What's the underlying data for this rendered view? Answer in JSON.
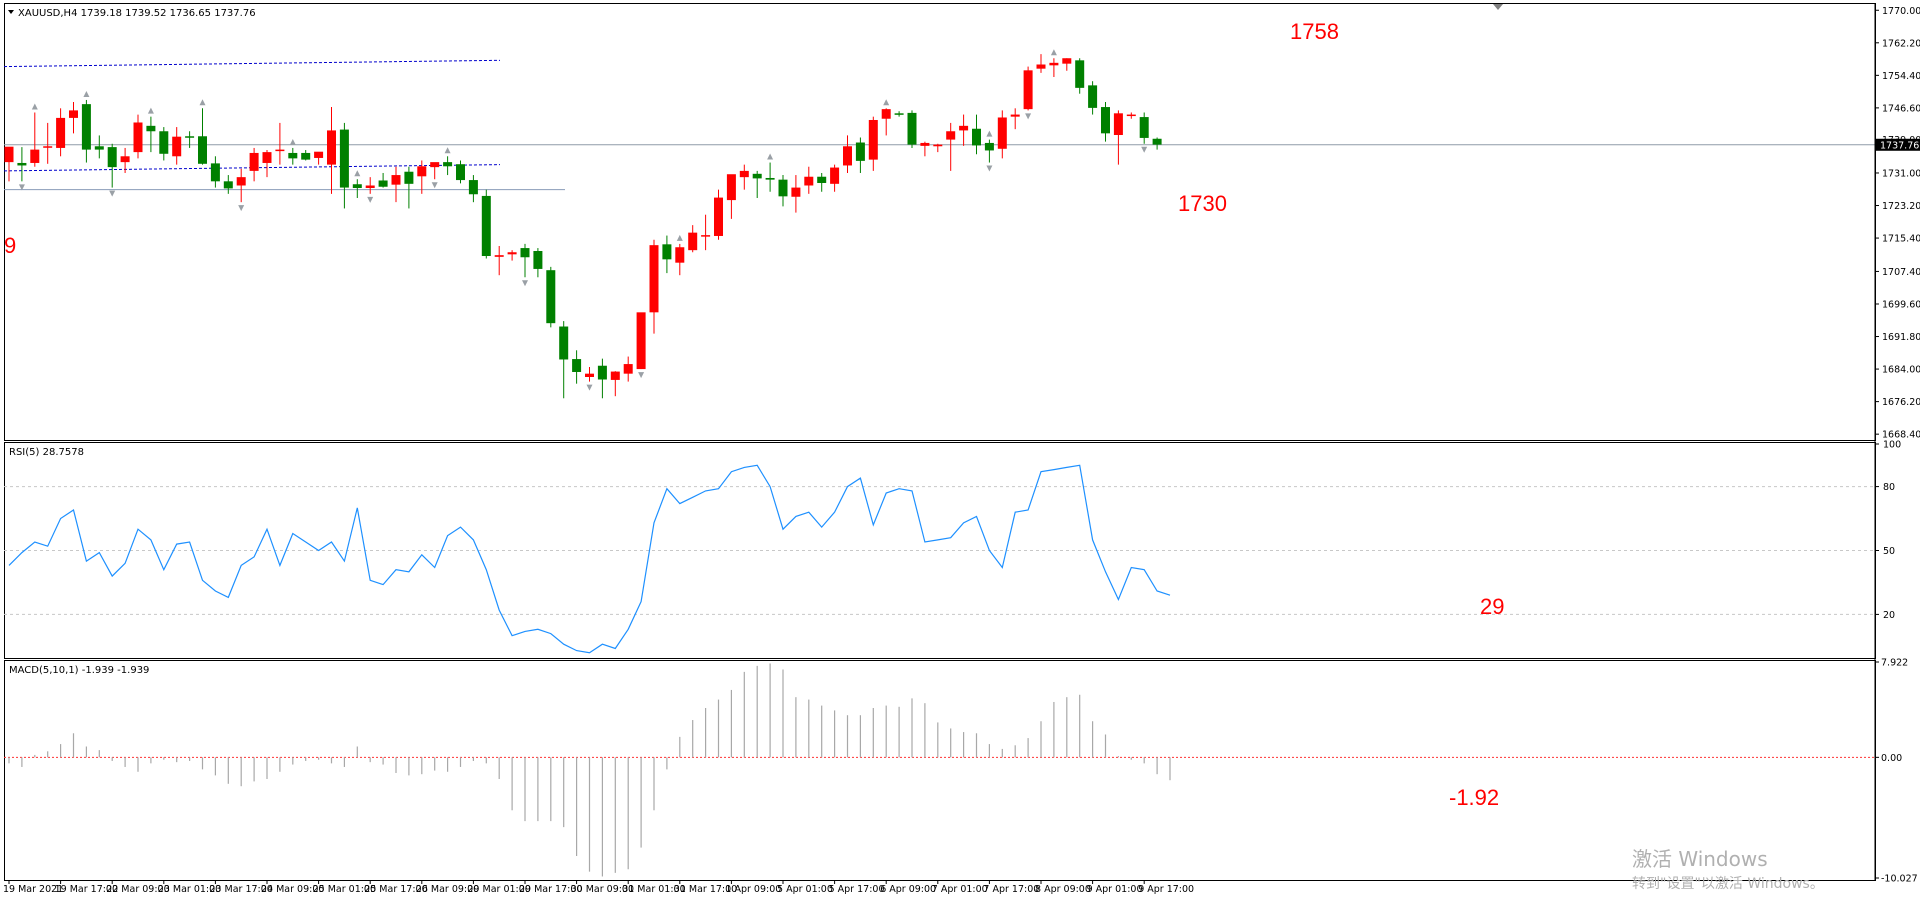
{
  "symbol_line": "XAUUSD,H4  1739.18 1739.52 1736.65 1737.76",
  "price_axis": {
    "ticks": [
      "1770.00",
      "1762.20",
      "1754.40",
      "1746.60",
      "1739.00",
      "1731.00",
      "1723.20",
      "1715.40",
      "1707.40",
      "1699.60",
      "1691.80",
      "1684.00",
      "1676.20",
      "1668.40"
    ],
    "current_label": "1737.76",
    "range": [
      1667.0,
      1771.5
    ]
  },
  "annotations": {
    "high": "1758",
    "low": "1730",
    "left_cut": "9",
    "rsi_value": "29",
    "macd_value": "-1.92"
  },
  "rsi": {
    "label": "RSI(5) 28.7578",
    "ticks": [
      "100",
      "80",
      "50",
      "20"
    ],
    "levels": [
      80,
      50,
      20
    ],
    "values": [
      43,
      49,
      54,
      52,
      65,
      69,
      45,
      49,
      38,
      44,
      60,
      55,
      41,
      53,
      54,
      36,
      31,
      28,
      43,
      47,
      60,
      43,
      58,
      54,
      50,
      54,
      45,
      70,
      36,
      34,
      41,
      40,
      48,
      42,
      57,
      61,
      55,
      41,
      22,
      10,
      12,
      13,
      11,
      6,
      3,
      2,
      6,
      4,
      13,
      26,
      63,
      79,
      72,
      75,
      78,
      79,
      87,
      89,
      90,
      80,
      60,
      66,
      68,
      61,
      68,
      80,
      84,
      62,
      77,
      79,
      78,
      54,
      55,
      56,
      63,
      66,
      50,
      42,
      68,
      69,
      87,
      88,
      89,
      90,
      55,
      40,
      27,
      42,
      41,
      31,
      29
    ],
    "range": [
      0,
      100
    ]
  },
  "macd": {
    "label": "MACD(5,10,1) -1.939 -1.939",
    "ticks": [
      "7.922",
      "0.00",
      "-10.027"
    ],
    "range": [
      -10.027,
      7.922
    ],
    "hist": [
      -0.5,
      -0.8,
      0.2,
      0.5,
      1.1,
      2.0,
      0.9,
      0.6,
      -0.3,
      -0.8,
      -1.2,
      -0.5,
      -0.2,
      -0.4,
      -0.3,
      -1.0,
      -1.5,
      -2.2,
      -2.4,
      -2.0,
      -1.8,
      -1.2,
      -0.6,
      -0.3,
      -0.2,
      -0.5,
      -0.8,
      0.9,
      -0.4,
      -0.6,
      -1.3,
      -1.5,
      -1.4,
      -1.1,
      -1.2,
      -0.8,
      -0.3,
      -0.5,
      -1.8,
      -4.4,
      -5.3,
      -5.3,
      -5.3,
      -5.8,
      -8.2,
      -9.5,
      -9.9,
      -9.6,
      -9.3,
      -7.5,
      -4.4,
      -1.0,
      1.7,
      3.1,
      4.1,
      4.8,
      5.6,
      7.1,
      7.6,
      7.8,
      7.3,
      5.0,
      4.8,
      4.3,
      3.9,
      3.5,
      3.5,
      4.1,
      4.3,
      4.2,
      4.9,
      4.5,
      2.9,
      2.4,
      2.1,
      2.0,
      1.1,
      0.7,
      1.0,
      1.6,
      3.0,
      4.6,
      5.0,
      5.2,
      3.0,
      1.9,
      0.1,
      -0.2,
      -0.5,
      -1.4,
      -1.9
    ]
  },
  "candles": [
    [
      1733.6,
      1737.0,
      1729.0,
      1737.3
    ],
    [
      1733.4,
      1737.2,
      1729.0,
      1732.8
    ],
    [
      1733.4,
      1745.5,
      1732.5,
      1736.6
    ],
    [
      1737.2,
      1743.0,
      1733.2,
      1737.4
    ],
    [
      1737.0,
      1746.5,
      1735.0,
      1744.2
    ],
    [
      1744.2,
      1748.0,
      1740.5,
      1746.0
    ],
    [
      1747.5,
      1748.5,
      1733.5,
      1736.6
    ],
    [
      1737.4,
      1740.0,
      1734.5,
      1736.6
    ],
    [
      1737.2,
      1738.0,
      1727.5,
      1732.4
    ],
    [
      1733.6,
      1737.0,
      1731.0,
      1735.0
    ],
    [
      1736.0,
      1745.0,
      1734.5,
      1743.1
    ],
    [
      1742.3,
      1744.5,
      1736.0,
      1741.0
    ],
    [
      1741.0,
      1742.0,
      1734.0,
      1735.6
    ],
    [
      1735.0,
      1742.0,
      1733.0,
      1739.7
    ],
    [
      1739.8,
      1741.0,
      1737.0,
      1739.6
    ],
    [
      1739.8,
      1746.5,
      1733.0,
      1733.2
    ],
    [
      1733.3,
      1735.0,
      1727.5,
      1729.0
    ],
    [
      1729.0,
      1730.5,
      1726.0,
      1727.3
    ],
    [
      1728.0,
      1732.0,
      1724.0,
      1730.0
    ],
    [
      1731.5,
      1737.0,
      1729.0,
      1735.8
    ],
    [
      1733.4,
      1736.5,
      1730.0,
      1736.0
    ],
    [
      1736.5,
      1743.0,
      1733.0,
      1736.6
    ],
    [
      1735.8,
      1737.0,
      1733.0,
      1734.5
    ],
    [
      1735.8,
      1736.5,
      1734.0,
      1734.2
    ],
    [
      1734.6,
      1735.5,
      1733.0,
      1736.1
    ],
    [
      1733.0,
      1746.8,
      1726.0,
      1741.2
    ],
    [
      1741.4,
      1743.0,
      1722.5,
      1727.5
    ],
    [
      1728.3,
      1729.5,
      1725.0,
      1727.4
    ],
    [
      1727.4,
      1730.0,
      1726.0,
      1728.0
    ],
    [
      1729.2,
      1731.0,
      1727.5,
      1727.7
    ],
    [
      1728.2,
      1732.5,
      1724.0,
      1730.5
    ],
    [
      1731.3,
      1732.5,
      1722.5,
      1728.4
    ],
    [
      1730.2,
      1734.0,
      1726.0,
      1732.6
    ],
    [
      1732.4,
      1733.5,
      1729.5,
      1733.6
    ],
    [
      1733.6,
      1735.0,
      1730.5,
      1732.6
    ],
    [
      1733.1,
      1734.0,
      1728.5,
      1729.3
    ],
    [
      1729.3,
      1730.5,
      1724.0,
      1725.9
    ],
    [
      1725.5,
      1727.0,
      1710.5,
      1711.1
    ],
    [
      1710.9,
      1713.5,
      1706.5,
      1711.3
    ],
    [
      1711.5,
      1712.5,
      1710.0,
      1712.0
    ],
    [
      1713.0,
      1714.0,
      1706.0,
      1710.8
    ],
    [
      1712.3,
      1713.0,
      1706.0,
      1708.0
    ],
    [
      1707.7,
      1708.5,
      1694.0,
      1695.0
    ],
    [
      1694.2,
      1695.5,
      1677.0,
      1686.3
    ],
    [
      1686.4,
      1688.5,
      1680.5,
      1683.3
    ],
    [
      1682.1,
      1684.5,
      1681.0,
      1682.9
    ],
    [
      1684.8,
      1686.5,
      1677.0,
      1681.5
    ],
    [
      1681.4,
      1683.5,
      1677.5,
      1683.4
    ],
    [
      1682.9,
      1687.0,
      1681.0,
      1685.2
    ],
    [
      1684.0,
      1697.5,
      1684.0,
      1697.6
    ],
    [
      1697.6,
      1715.0,
      1692.5,
      1713.7
    ],
    [
      1713.9,
      1716.0,
      1707.0,
      1710.3
    ],
    [
      1709.5,
      1714.0,
      1706.5,
      1713.2
    ],
    [
      1712.5,
      1718.5,
      1712.0,
      1716.7
    ],
    [
      1716.0,
      1721.0,
      1712.5,
      1716.1
    ],
    [
      1715.9,
      1727.0,
      1715.0,
      1725.1
    ],
    [
      1724.5,
      1730.5,
      1720.0,
      1730.7
    ],
    [
      1730.0,
      1733.0,
      1727.0,
      1731.5
    ],
    [
      1730.8,
      1731.5,
      1725.0,
      1729.7
    ],
    [
      1729.8,
      1733.5,
      1726.5,
      1729.4
    ],
    [
      1729.4,
      1730.5,
      1723.0,
      1725.4
    ],
    [
      1725.3,
      1730.5,
      1721.5,
      1727.5
    ],
    [
      1728.0,
      1732.5,
      1726.0,
      1730.1
    ],
    [
      1730.1,
      1731.0,
      1726.5,
      1728.6
    ],
    [
      1728.4,
      1733.0,
      1726.5,
      1732.3
    ],
    [
      1732.8,
      1740.0,
      1731.0,
      1737.4
    ],
    [
      1738.3,
      1739.5,
      1731.0,
      1733.9
    ],
    [
      1734.2,
      1744.5,
      1731.5,
      1743.7
    ],
    [
      1744.0,
      1746.5,
      1740.0,
      1746.3
    ],
    [
      1745.3,
      1745.8,
      1744.5,
      1745.0
    ],
    [
      1745.4,
      1746.0,
      1737.0,
      1737.8
    ],
    [
      1737.5,
      1738.5,
      1735.0,
      1738.2
    ],
    [
      1737.4,
      1738.0,
      1736.0,
      1737.8
    ],
    [
      1739.0,
      1743.0,
      1731.5,
      1741.0
    ],
    [
      1741.2,
      1745.0,
      1737.5,
      1742.3
    ],
    [
      1741.6,
      1745.0,
      1735.5,
      1737.6
    ],
    [
      1738.2,
      1739.0,
      1733.5,
      1736.4
    ],
    [
      1736.8,
      1746.0,
      1734.5,
      1744.3
    ],
    [
      1744.5,
      1746.5,
      1741.5,
      1745.0
    ],
    [
      1746.3,
      1756.5,
      1746.0,
      1755.6
    ],
    [
      1756.0,
      1759.5,
      1755.0,
      1757.0
    ],
    [
      1756.8,
      1758.5,
      1754.0,
      1757.4
    ],
    [
      1757.2,
      1758.5,
      1755.5,
      1758.5
    ],
    [
      1758.0,
      1758.5,
      1750.0,
      1751.4
    ],
    [
      1752.0,
      1753.0,
      1745.0,
      1746.6
    ],
    [
      1746.8,
      1748.0,
      1738.5,
      1740.5
    ],
    [
      1740.1,
      1746.0,
      1733.0,
      1745.3
    ],
    [
      1744.8,
      1745.5,
      1744.0,
      1745.0
    ],
    [
      1744.4,
      1745.5,
      1738.0,
      1739.4
    ],
    [
      1739.2,
      1739.5,
      1736.6,
      1737.8
    ]
  ],
  "dates": [
    "19 Mar 2021",
    "19 Mar 17:00",
    "22 Mar 09:00",
    "23 Mar 01:00",
    "23 Mar 17:00",
    "24 Mar 09:00",
    "25 Mar 01:00",
    "25 Mar 17:00",
    "26 Mar 09:00",
    "29 Mar 01:00",
    "29 Mar 17:00",
    "30 Mar 09:00",
    "31 Mar 01:00",
    "31 Mar 17:00",
    "1 Apr 09:00",
    "5 Apr 01:00",
    "5 Apr 17:00",
    "6 Apr 09:00",
    "7 Apr 01:00",
    "7 Apr 17:00",
    "8 Apr 09:00",
    "9 Apr 01:00",
    "9 Apr 17:00"
  ],
  "watermark": {
    "line1": "激活 Windows",
    "line2": "转到\"设置\"以激活 Windows。"
  },
  "colors": {
    "bull": "#ff0000",
    "bear": "#008000",
    "rsi_line": "#1e90ff",
    "channel": "#0000cc",
    "annotation": "#ff0000",
    "grid": "#c8c8c8"
  },
  "chart_data": [
    {
      "type": "candlestick",
      "title": "XAUUSD,H4",
      "ylim": [
        1668.4,
        1770.0
      ],
      "note_values": [
        "1758",
        "1730"
      ],
      "series_ref": "candles"
    },
    {
      "type": "line",
      "title": "RSI(5) 28.7578",
      "ylim": [
        0,
        100
      ],
      "series_ref": "rsi.values"
    },
    {
      "type": "bar",
      "title": "MACD(5,10,1) -1.939 -1.939",
      "ylim": [
        -10.027,
        7.922
      ],
      "series_ref": "macd.hist"
    }
  ]
}
